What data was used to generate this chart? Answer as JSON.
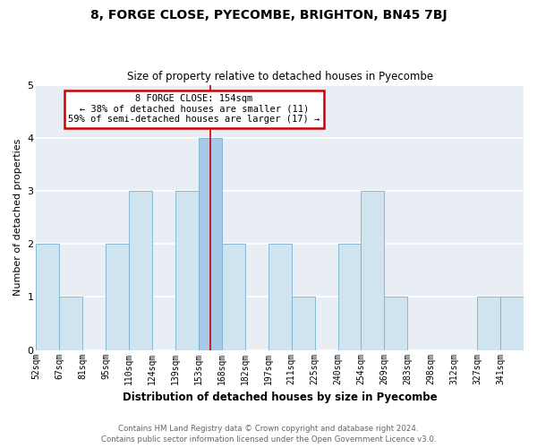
{
  "title": "8, FORGE CLOSE, PYECOMBE, BRIGHTON, BN45 7BJ",
  "subtitle": "Size of property relative to detached houses in Pyecombe",
  "xlabel": "Distribution of detached houses by size in Pyecombe",
  "ylabel": "Number of detached properties",
  "bin_labels": [
    "52sqm",
    "67sqm",
    "81sqm",
    "95sqm",
    "110sqm",
    "124sqm",
    "139sqm",
    "153sqm",
    "168sqm",
    "182sqm",
    "197sqm",
    "211sqm",
    "225sqm",
    "240sqm",
    "254sqm",
    "269sqm",
    "283sqm",
    "298sqm",
    "312sqm",
    "327sqm",
    "341sqm"
  ],
  "counts": [
    2,
    1,
    0,
    2,
    3,
    0,
    3,
    4,
    2,
    0,
    2,
    1,
    0,
    2,
    3,
    1,
    0,
    0,
    0,
    1,
    1
  ],
  "n_bins": 21,
  "highlight_bin_index": 7,
  "highlight_color": "#a8c8e8",
  "bar_color": "#d0e4f0",
  "highlight_edge_color": "#cc0000",
  "bar_edge_color": "#7ab0d0",
  "annotation_text": "8 FORGE CLOSE: 154sqm\n← 38% of detached houses are smaller (11)\n59% of semi-detached houses are larger (17) →",
  "annotation_box_edge": "#cc0000",
  "footer_line1": "Contains HM Land Registry data © Crown copyright and database right 2024.",
  "footer_line2": "Contains public sector information licensed under the Open Government Licence v3.0.",
  "ylim": [
    0,
    5
  ],
  "bg_color": "#e8eef4"
}
